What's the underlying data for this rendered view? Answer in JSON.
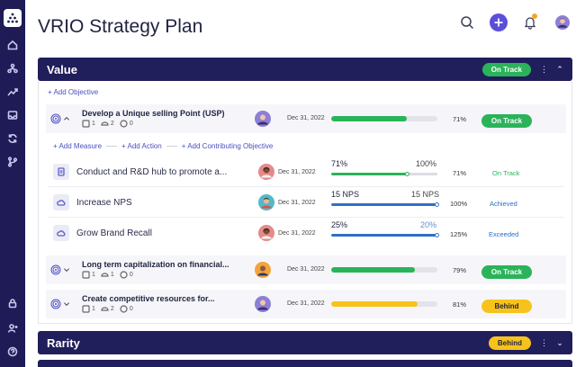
{
  "page": {
    "title": "VRIO Strategy Plan"
  },
  "colors": {
    "sidebar": "#1e1b56",
    "header": "#211e5c",
    "accent": "#5b4fd9",
    "green": "#2bb35a",
    "yellow": "#f7c31b",
    "blue": "#2f6fc4"
  },
  "sidebar": {
    "icons": [
      "home-icon",
      "hierarchy-icon",
      "trend-icon",
      "inbox-icon",
      "refresh-icon",
      "branch-icon",
      "lock-icon",
      "user-add-icon",
      "help-icon"
    ]
  },
  "topbar": {
    "icons": [
      "search-icon",
      "plus-icon",
      "bell-icon",
      "avatar"
    ]
  },
  "value_panel": {
    "title": "Value",
    "status": "On Track",
    "add_objective": "+ Add Objective",
    "objectives": [
      {
        "title": "Develop a Unique selling Point (USP)",
        "measures_count": "1",
        "actions_count": "2",
        "contributing_count": "0",
        "date": "Dec 31, 2022",
        "progress_pct": "71%",
        "progress": 0.71,
        "status": "On Track"
      }
    ],
    "add_measure": "+ Add Measure",
    "add_action": "+ Add Action",
    "add_contributing": "+ Add Contributing Objective",
    "measures": [
      {
        "title": "Conduct and R&D hub to promote a...",
        "date": "Dec 31, 2022",
        "current": "71%",
        "target": "100%",
        "pct": "71%",
        "progress": 0.71,
        "status": "On Track"
      },
      {
        "title": "Increase NPS",
        "date": "Dec 31, 2022",
        "current": "15 NPS",
        "target": "15 NPS",
        "pct": "100%",
        "progress": 1.0,
        "status": "Achieved"
      },
      {
        "title": "Grow Brand Recall",
        "date": "Dec 31, 2022",
        "current": "25%",
        "target": "20%",
        "pct": "125%",
        "progress": 1.0,
        "status": "Exceeded"
      }
    ],
    "more_objectives": [
      {
        "title": "Long term capitalization on financial...",
        "measures_count": "1",
        "actions_count": "1",
        "contributing_count": "0",
        "date": "Dec 31, 2022",
        "progress_pct": "79%",
        "progress": 0.79,
        "status": "On Track"
      },
      {
        "title": "Create competitive resources for...",
        "measures_count": "1",
        "actions_count": "2",
        "contributing_count": "0",
        "date": "Dec 31, 2022",
        "progress_pct": "81%",
        "progress": 0.81,
        "status": "Behind"
      }
    ]
  },
  "rarity_panel": {
    "title": "Rarity",
    "status": "Behind"
  }
}
